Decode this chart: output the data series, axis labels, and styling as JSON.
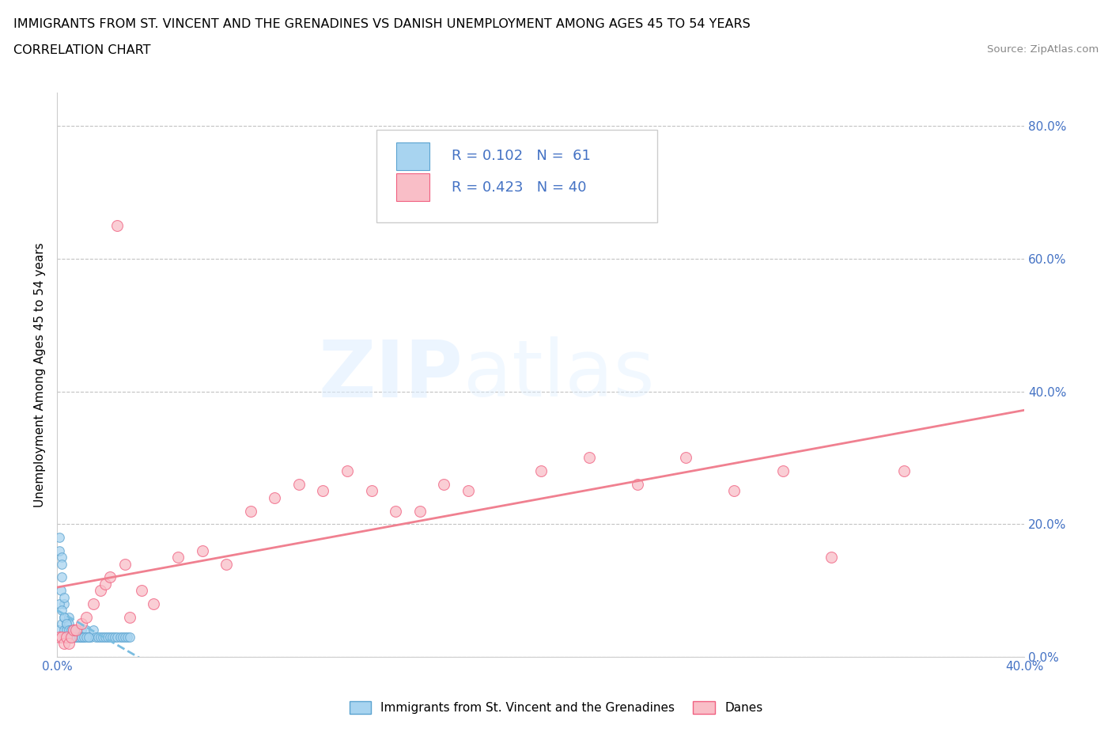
{
  "title_line1": "IMMIGRANTS FROM ST. VINCENT AND THE GRENADINES VS DANISH UNEMPLOYMENT AMONG AGES 45 TO 54 YEARS",
  "title_line2": "CORRELATION CHART",
  "source_text": "Source: ZipAtlas.com",
  "ylabel": "Unemployment Among Ages 45 to 54 years",
  "xlim": [
    0.0,
    0.4
  ],
  "ylim": [
    0.0,
    0.85
  ],
  "xticks": [
    0.0,
    0.05,
    0.1,
    0.15,
    0.2,
    0.25,
    0.3,
    0.35,
    0.4
  ],
  "yticks_right": [
    0.0,
    0.2,
    0.4,
    0.6,
    0.8
  ],
  "ytick_right_labels": [
    "0.0%",
    "20.0%",
    "40.0%",
    "60.0%",
    "80.0%"
  ],
  "blue_color": "#A8D4F0",
  "pink_color": "#F9BEC7",
  "blue_edge_color": "#5BA3D0",
  "pink_edge_color": "#F06080",
  "blue_line_color": "#7BBDE0",
  "pink_line_color": "#F08090",
  "legend_text_color": "#4472C4",
  "watermark": "ZIPatlas",
  "legend_label1": "Immigrants from St. Vincent and the Grenadines",
  "legend_label2": "Danes",
  "blue_scatter_x": [
    0.0005,
    0.001,
    0.001,
    0.0015,
    0.002,
    0.002,
    0.002,
    0.003,
    0.003,
    0.003,
    0.003,
    0.004,
    0.004,
    0.004,
    0.005,
    0.005,
    0.005,
    0.006,
    0.006,
    0.007,
    0.007,
    0.008,
    0.008,
    0.009,
    0.01,
    0.01,
    0.011,
    0.012,
    0.013,
    0.014,
    0.015,
    0.016,
    0.017,
    0.018,
    0.019,
    0.02,
    0.021,
    0.022,
    0.023,
    0.024,
    0.025,
    0.026,
    0.027,
    0.028,
    0.029,
    0.03,
    0.001,
    0.002,
    0.003,
    0.004,
    0.005,
    0.006,
    0.007,
    0.008,
    0.009,
    0.01,
    0.011,
    0.012,
    0.013,
    0.002,
    0.003
  ],
  "blue_scatter_y": [
    0.04,
    0.16,
    0.18,
    0.1,
    0.12,
    0.15,
    0.05,
    0.08,
    0.06,
    0.04,
    0.03,
    0.05,
    0.04,
    0.03,
    0.06,
    0.05,
    0.03,
    0.04,
    0.03,
    0.04,
    0.03,
    0.04,
    0.03,
    0.03,
    0.04,
    0.03,
    0.03,
    0.04,
    0.03,
    0.03,
    0.04,
    0.03,
    0.03,
    0.03,
    0.03,
    0.03,
    0.03,
    0.03,
    0.03,
    0.03,
    0.03,
    0.03,
    0.03,
    0.03,
    0.03,
    0.03,
    0.08,
    0.07,
    0.06,
    0.05,
    0.04,
    0.04,
    0.03,
    0.03,
    0.03,
    0.03,
    0.03,
    0.03,
    0.03,
    0.14,
    0.09
  ],
  "pink_scatter_x": [
    0.001,
    0.002,
    0.003,
    0.004,
    0.005,
    0.006,
    0.007,
    0.008,
    0.01,
    0.012,
    0.015,
    0.018,
    0.02,
    0.022,
    0.025,
    0.028,
    0.03,
    0.035,
    0.04,
    0.05,
    0.06,
    0.07,
    0.08,
    0.09,
    0.1,
    0.11,
    0.12,
    0.13,
    0.14,
    0.15,
    0.16,
    0.17,
    0.2,
    0.22,
    0.24,
    0.26,
    0.28,
    0.3,
    0.32,
    0.35
  ],
  "pink_scatter_y": [
    0.03,
    0.03,
    0.02,
    0.03,
    0.02,
    0.03,
    0.04,
    0.04,
    0.05,
    0.06,
    0.08,
    0.1,
    0.11,
    0.12,
    0.65,
    0.14,
    0.06,
    0.1,
    0.08,
    0.15,
    0.16,
    0.14,
    0.22,
    0.24,
    0.26,
    0.25,
    0.28,
    0.25,
    0.22,
    0.22,
    0.26,
    0.25,
    0.28,
    0.3,
    0.26,
    0.3,
    0.25,
    0.28,
    0.15,
    0.28
  ]
}
